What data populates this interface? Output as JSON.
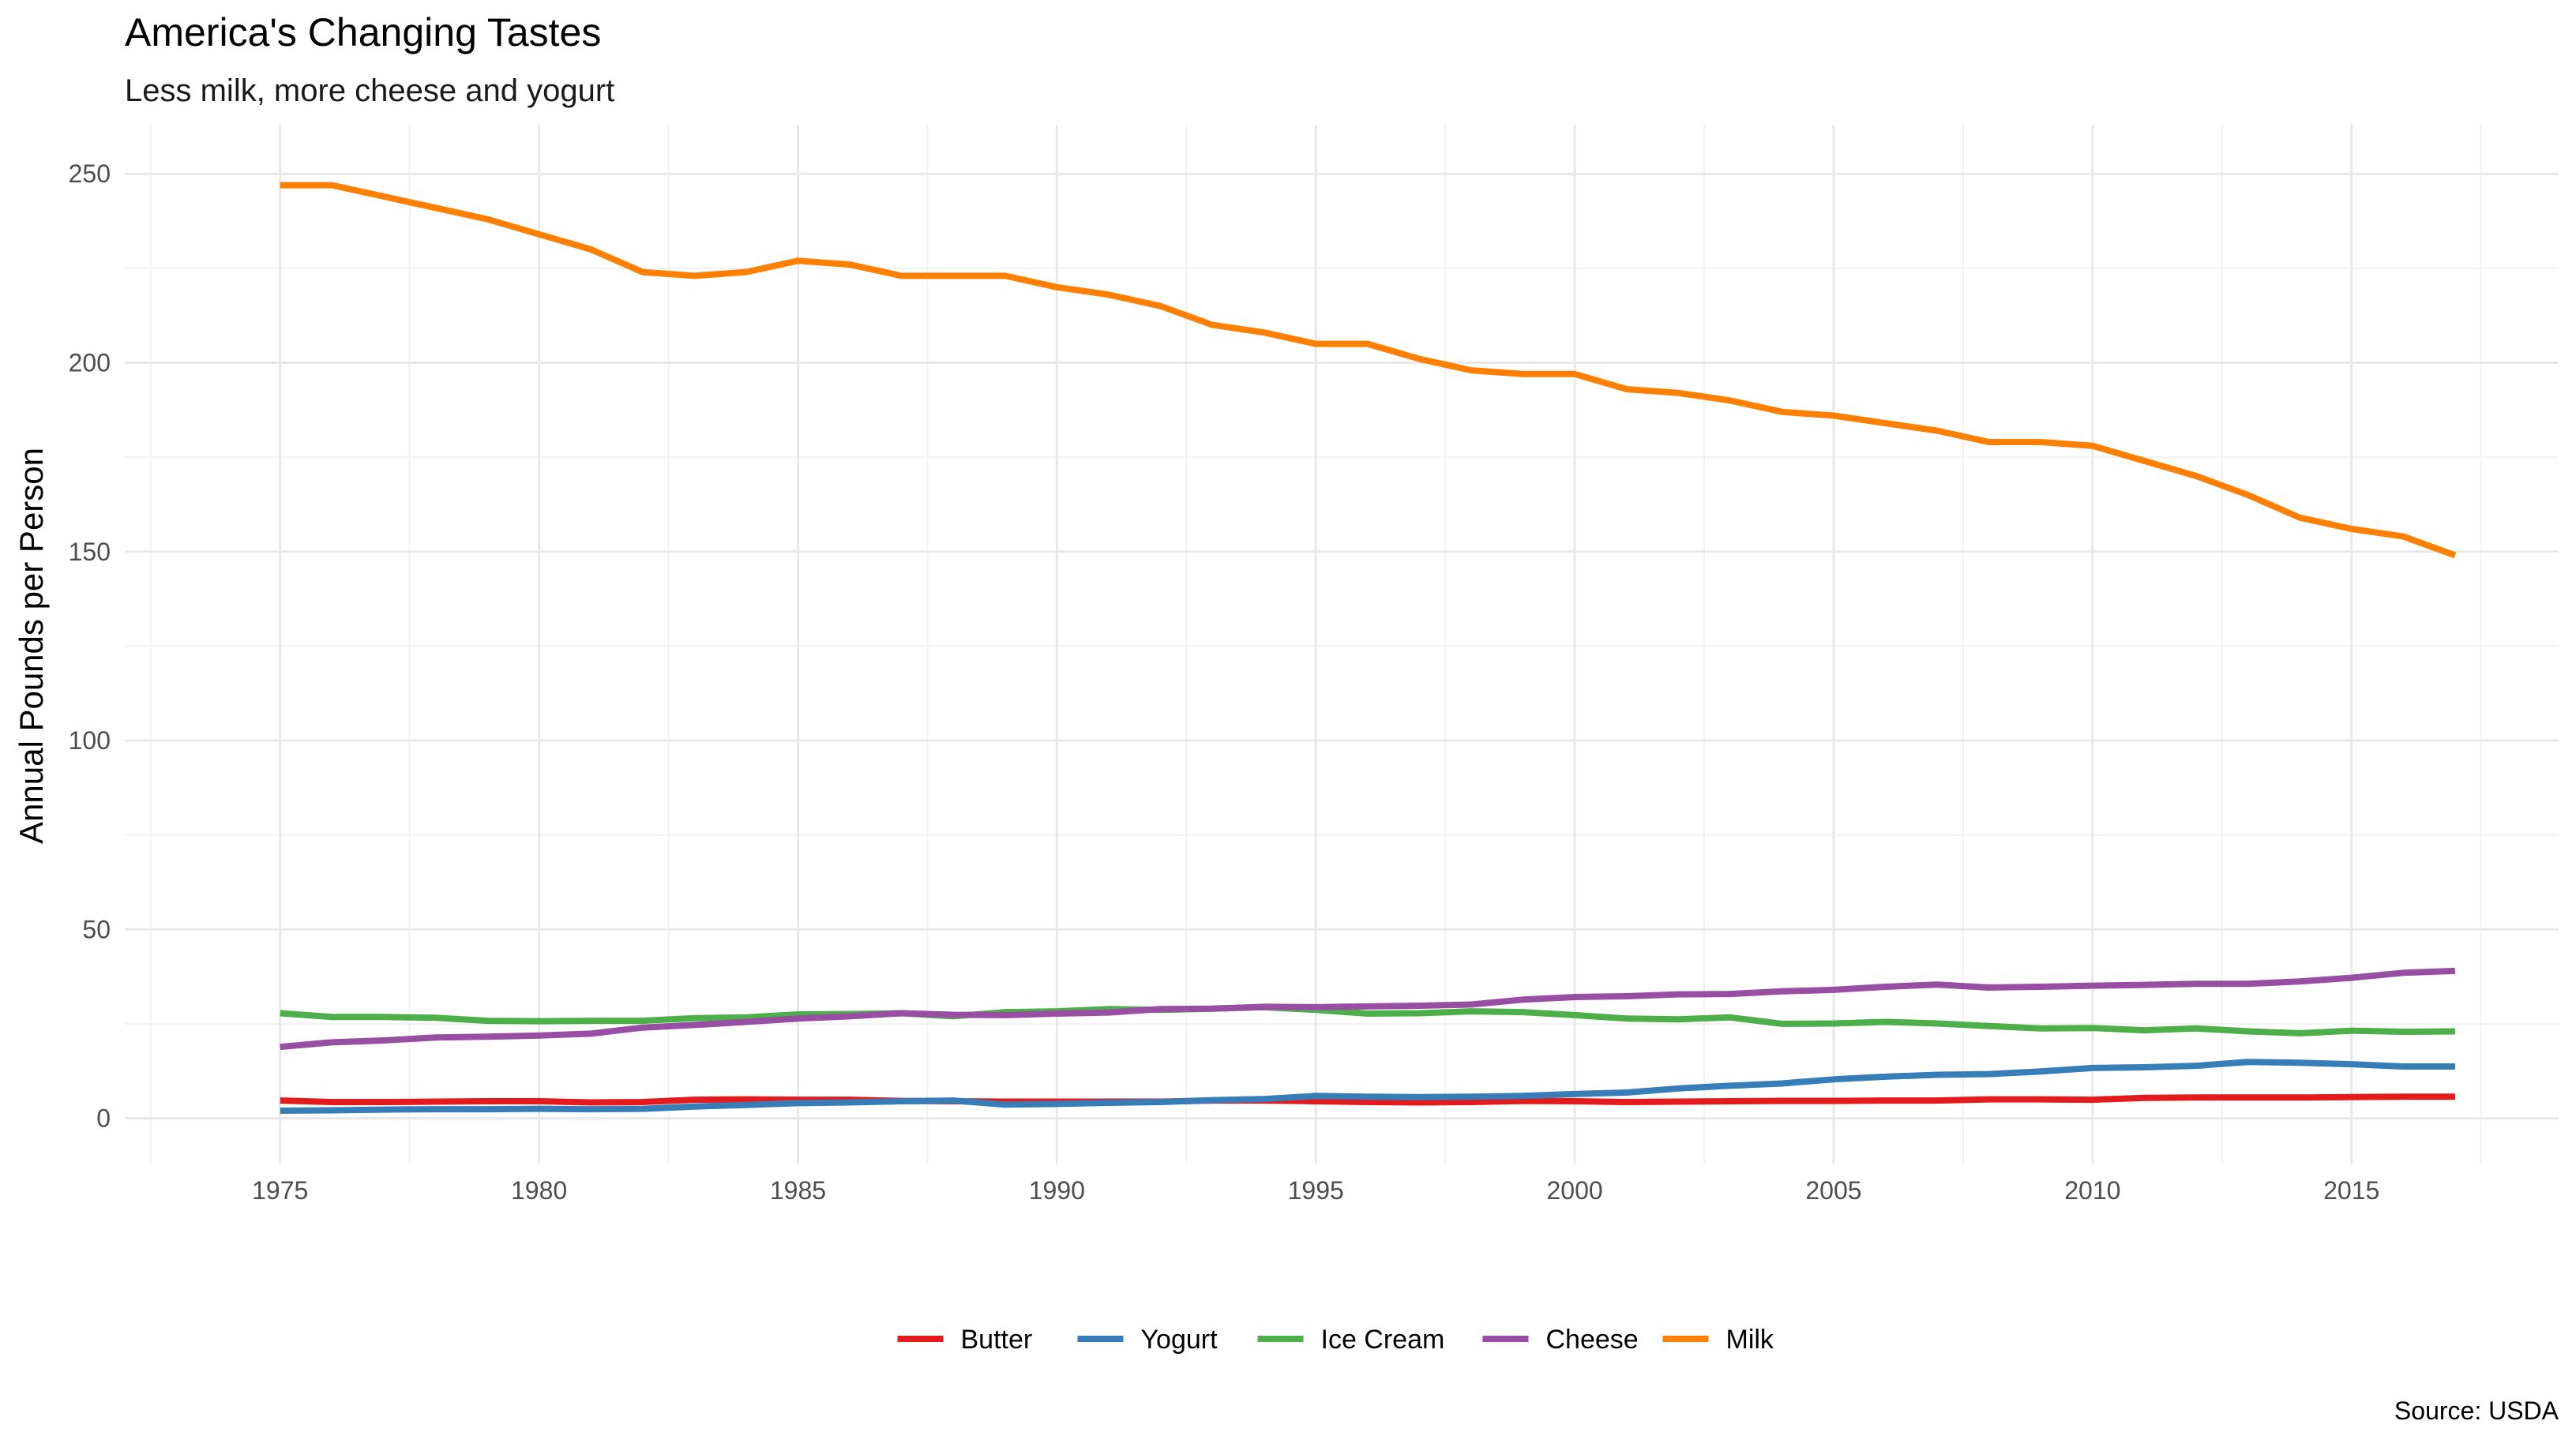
{
  "chart_data": {
    "type": "line",
    "title": "America's Changing Tastes",
    "subtitle": "Less milk, more cheese and yogurt",
    "xlabel": "",
    "ylabel": "Annual Pounds per Person",
    "caption": "Source: USDA",
    "x": [
      1975,
      1976,
      1977,
      1978,
      1979,
      1980,
      1981,
      1982,
      1983,
      1984,
      1985,
      1986,
      1987,
      1988,
      1989,
      1990,
      1991,
      1992,
      1993,
      1994,
      1995,
      1996,
      1997,
      1998,
      1999,
      2000,
      2001,
      2002,
      2003,
      2004,
      2005,
      2006,
      2007,
      2008,
      2009,
      2010,
      2011,
      2012,
      2013,
      2014,
      2015,
      2016,
      2017
    ],
    "xlim": [
      1972,
      2019
    ],
    "ylim": [
      -12,
      263
    ],
    "x_ticks": [
      "1975",
      "1980",
      "1985",
      "1990",
      "1995",
      "2000",
      "2005",
      "2010",
      "2015"
    ],
    "y_ticks": [
      "0",
      "50",
      "100",
      "150",
      "200",
      "250"
    ],
    "grid": true,
    "legend_position": "bottom",
    "series": [
      {
        "name": "Butter",
        "color": "#e41a1c",
        "values": [
          4.7,
          4.3,
          4.3,
          4.4,
          4.5,
          4.5,
          4.2,
          4.3,
          4.9,
          5.0,
          4.9,
          4.9,
          4.6,
          4.5,
          4.4,
          4.4,
          4.4,
          4.4,
          4.7,
          4.7,
          4.5,
          4.3,
          4.2,
          4.3,
          4.6,
          4.5,
          4.3,
          4.4,
          4.5,
          4.6,
          4.6,
          4.7,
          4.7,
          5.0,
          5.0,
          4.9,
          5.4,
          5.5,
          5.5,
          5.5,
          5.6,
          5.7,
          5.7
        ]
      },
      {
        "name": "Yogurt",
        "color": "#377eb8",
        "values": [
          2.0,
          2.1,
          2.3,
          2.4,
          2.4,
          2.5,
          2.4,
          2.5,
          3.1,
          3.5,
          4.0,
          4.2,
          4.5,
          4.7,
          3.6,
          3.8,
          4.1,
          4.3,
          4.8,
          5.1,
          5.9,
          5.7,
          5.6,
          5.7,
          5.9,
          6.4,
          6.8,
          7.9,
          8.6,
          9.2,
          10.3,
          11.0,
          11.5,
          11.7,
          12.4,
          13.3,
          13.5,
          13.9,
          14.9,
          14.7,
          14.3,
          13.7,
          13.7
        ]
      },
      {
        "name": "Ice Cream",
        "color": "#4daf4a",
        "values": [
          27.8,
          26.8,
          26.8,
          26.6,
          25.8,
          25.7,
          25.8,
          25.8,
          26.5,
          26.7,
          27.5,
          27.6,
          27.8,
          27.0,
          28.1,
          28.3,
          28.9,
          28.7,
          29.0,
          29.4,
          28.7,
          27.7,
          27.8,
          28.3,
          28.1,
          27.3,
          26.4,
          26.2,
          26.7,
          25.0,
          25.1,
          25.5,
          25.1,
          24.4,
          23.8,
          23.9,
          23.3,
          23.8,
          23.0,
          22.5,
          23.2,
          22.9,
          23.0
        ]
      },
      {
        "name": "Cheese",
        "color": "#984ea3",
        "values": [
          18.9,
          20.1,
          20.6,
          21.4,
          21.6,
          21.9,
          22.4,
          24.0,
          24.7,
          25.5,
          26.4,
          27.0,
          27.8,
          27.4,
          27.3,
          27.7,
          28.0,
          28.9,
          29.0,
          29.5,
          29.4,
          29.6,
          29.8,
          30.1,
          31.4,
          32.1,
          32.3,
          32.8,
          32.9,
          33.6,
          34.0,
          34.8,
          35.4,
          34.6,
          34.8,
          35.1,
          35.3,
          35.6,
          35.6,
          36.2,
          37.2,
          38.5,
          39.0
        ]
      },
      {
        "name": "Milk",
        "color": "#ff7f00",
        "values": [
          247,
          247,
          244,
          241,
          238,
          234,
          230,
          224,
          223,
          224,
          227,
          226,
          223,
          223,
          223,
          220,
          218,
          215,
          210,
          208,
          205,
          205,
          201,
          198,
          197,
          197,
          193,
          192,
          190,
          187,
          186,
          184,
          182,
          179,
          179,
          178,
          174,
          170,
          165,
          159,
          156,
          154,
          149
        ]
      }
    ]
  }
}
